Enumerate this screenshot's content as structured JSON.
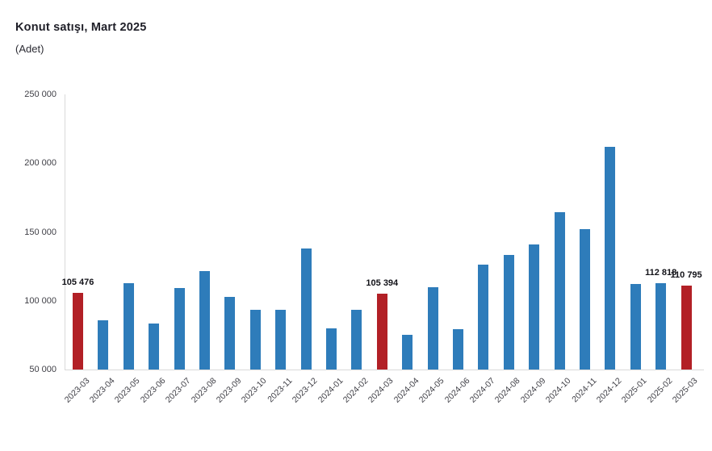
{
  "header": {
    "title": "Konut satışı, Mart 2025",
    "subtitle": "(Adet)"
  },
  "colors": {
    "bar": "#2e7cba",
    "highlight": "#b22026",
    "axis": "#d9d9d9",
    "title_text": "#1f1f28",
    "tick_text": "#3f3f46",
    "value_label_text": "#121218",
    "background": "#ffffff"
  },
  "chart_data": {
    "type": "bar",
    "title": "Konut satışı, Mart 2025",
    "subtitle": "(Adet)",
    "unit": "Adet",
    "categories": [
      "2023-03",
      "2023-04",
      "2023-05",
      "2023-06",
      "2023-07",
      "2023-08",
      "2023-09",
      "2023-10",
      "2023-11",
      "2023-12",
      "2024-01",
      "2024-02",
      "2024-03",
      "2024-04",
      "2024-05",
      "2024-06",
      "2024-07",
      "2024-08",
      "2024-09",
      "2024-10",
      "2024-11",
      "2024-12",
      "2025-01",
      "2025-02",
      "2025-03"
    ],
    "values": [
      105476,
      85652,
      112500,
      83500,
      109000,
      121500,
      102500,
      93500,
      93400,
      138000,
      80000,
      93500,
      105394,
      75500,
      110000,
      79300,
      126500,
      133500,
      140800,
      164500,
      152200,
      212000,
      112200,
      112818,
      110795
    ],
    "highlight_indices": [
      0,
      12,
      24
    ],
    "value_labels": [
      {
        "index": 0,
        "text": "105 476"
      },
      {
        "index": 12,
        "text": "105 394"
      },
      {
        "index": 23,
        "text": "112 818"
      },
      {
        "index": 24,
        "text": "110 795"
      }
    ],
    "ylim": [
      50000,
      250000
    ],
    "ytick_values": [
      50000,
      100000,
      150000,
      200000,
      250000
    ],
    "ytick_labels": [
      "50 000",
      "100 000",
      "150 000",
      "200 000",
      "250 000"
    ],
    "grid": false,
    "legend": false,
    "xlabel": "",
    "ylabel": ""
  }
}
